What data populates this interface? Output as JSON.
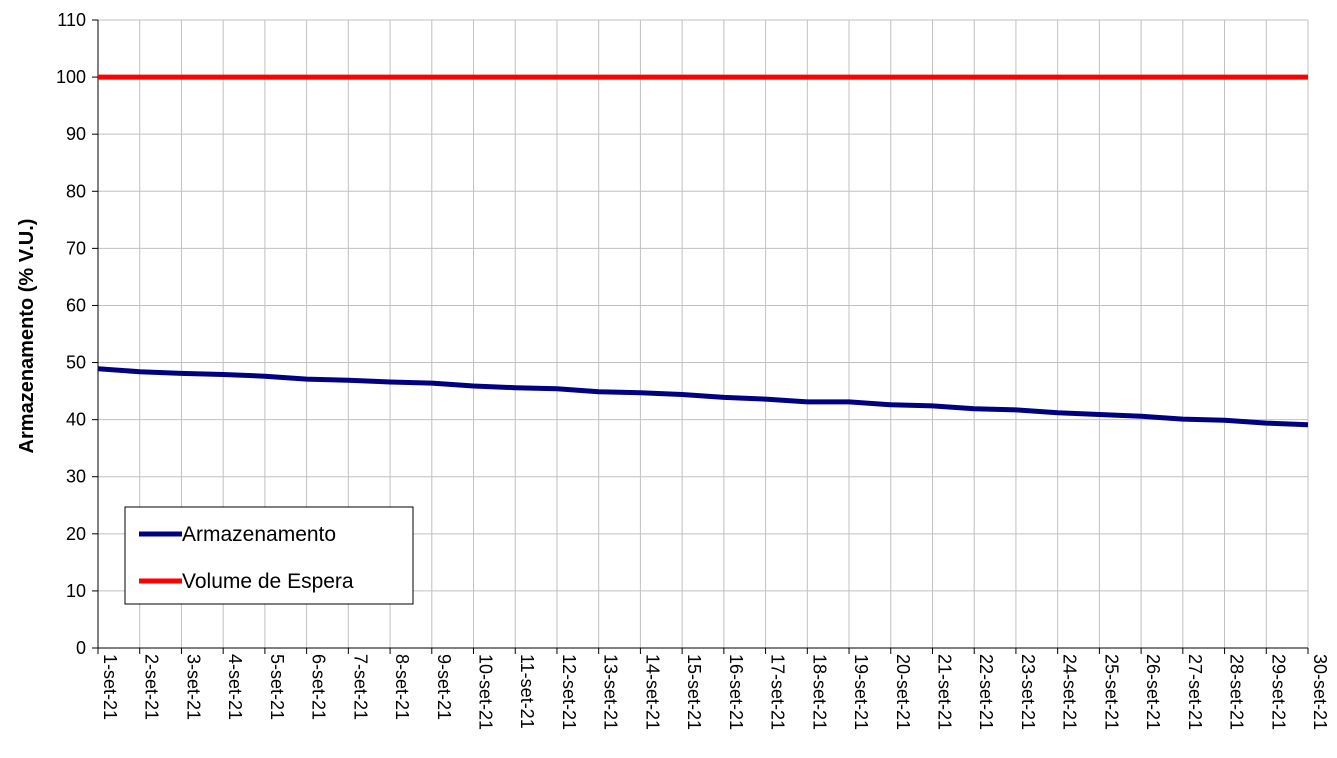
{
  "chart_data": {
    "type": "line",
    "title": "",
    "xlabel": "",
    "ylabel": "Armazenamento (% V.U.)",
    "ylim": [
      0,
      110
    ],
    "yticks": [
      0,
      10,
      20,
      30,
      40,
      50,
      60,
      70,
      80,
      90,
      100,
      110
    ],
    "grid": true,
    "legend_position": "bottom-left",
    "categories": [
      "1-set-21",
      "2-set-21",
      "3-set-21",
      "4-set-21",
      "5-set-21",
      "6-set-21",
      "7-set-21",
      "8-set-21",
      "9-set-21",
      "10-set-21",
      "11-set-21",
      "12-set-21",
      "13-set-21",
      "14-set-21",
      "15-set-21",
      "16-set-21",
      "17-set-21",
      "18-set-21",
      "19-set-21",
      "20-set-21",
      "21-set-21",
      "22-set-21",
      "23-set-21",
      "24-set-21",
      "25-set-21",
      "26-set-21",
      "27-set-21",
      "28-set-21",
      "29-set-21",
      "30-set-21"
    ],
    "series": [
      {
        "name": "Armazenamento",
        "color": "#000080",
        "values": [
          48.9,
          48.4,
          48.1,
          47.9,
          47.6,
          47.1,
          46.9,
          46.6,
          46.4,
          45.9,
          45.6,
          45.4,
          44.9,
          44.7,
          44.4,
          43.9,
          43.6,
          43.1,
          43.1,
          42.6,
          42.4,
          41.9,
          41.7,
          41.2,
          40.9,
          40.6,
          40.1,
          39.9,
          39.4,
          39.1
        ]
      },
      {
        "name": "Volume de Espera",
        "color": "#ff0000",
        "values": [
          100,
          100,
          100,
          100,
          100,
          100,
          100,
          100,
          100,
          100,
          100,
          100,
          100,
          100,
          100,
          100,
          100,
          100,
          100,
          100,
          100,
          100,
          100,
          100,
          100,
          100,
          100,
          100,
          100,
          100
        ]
      }
    ]
  }
}
